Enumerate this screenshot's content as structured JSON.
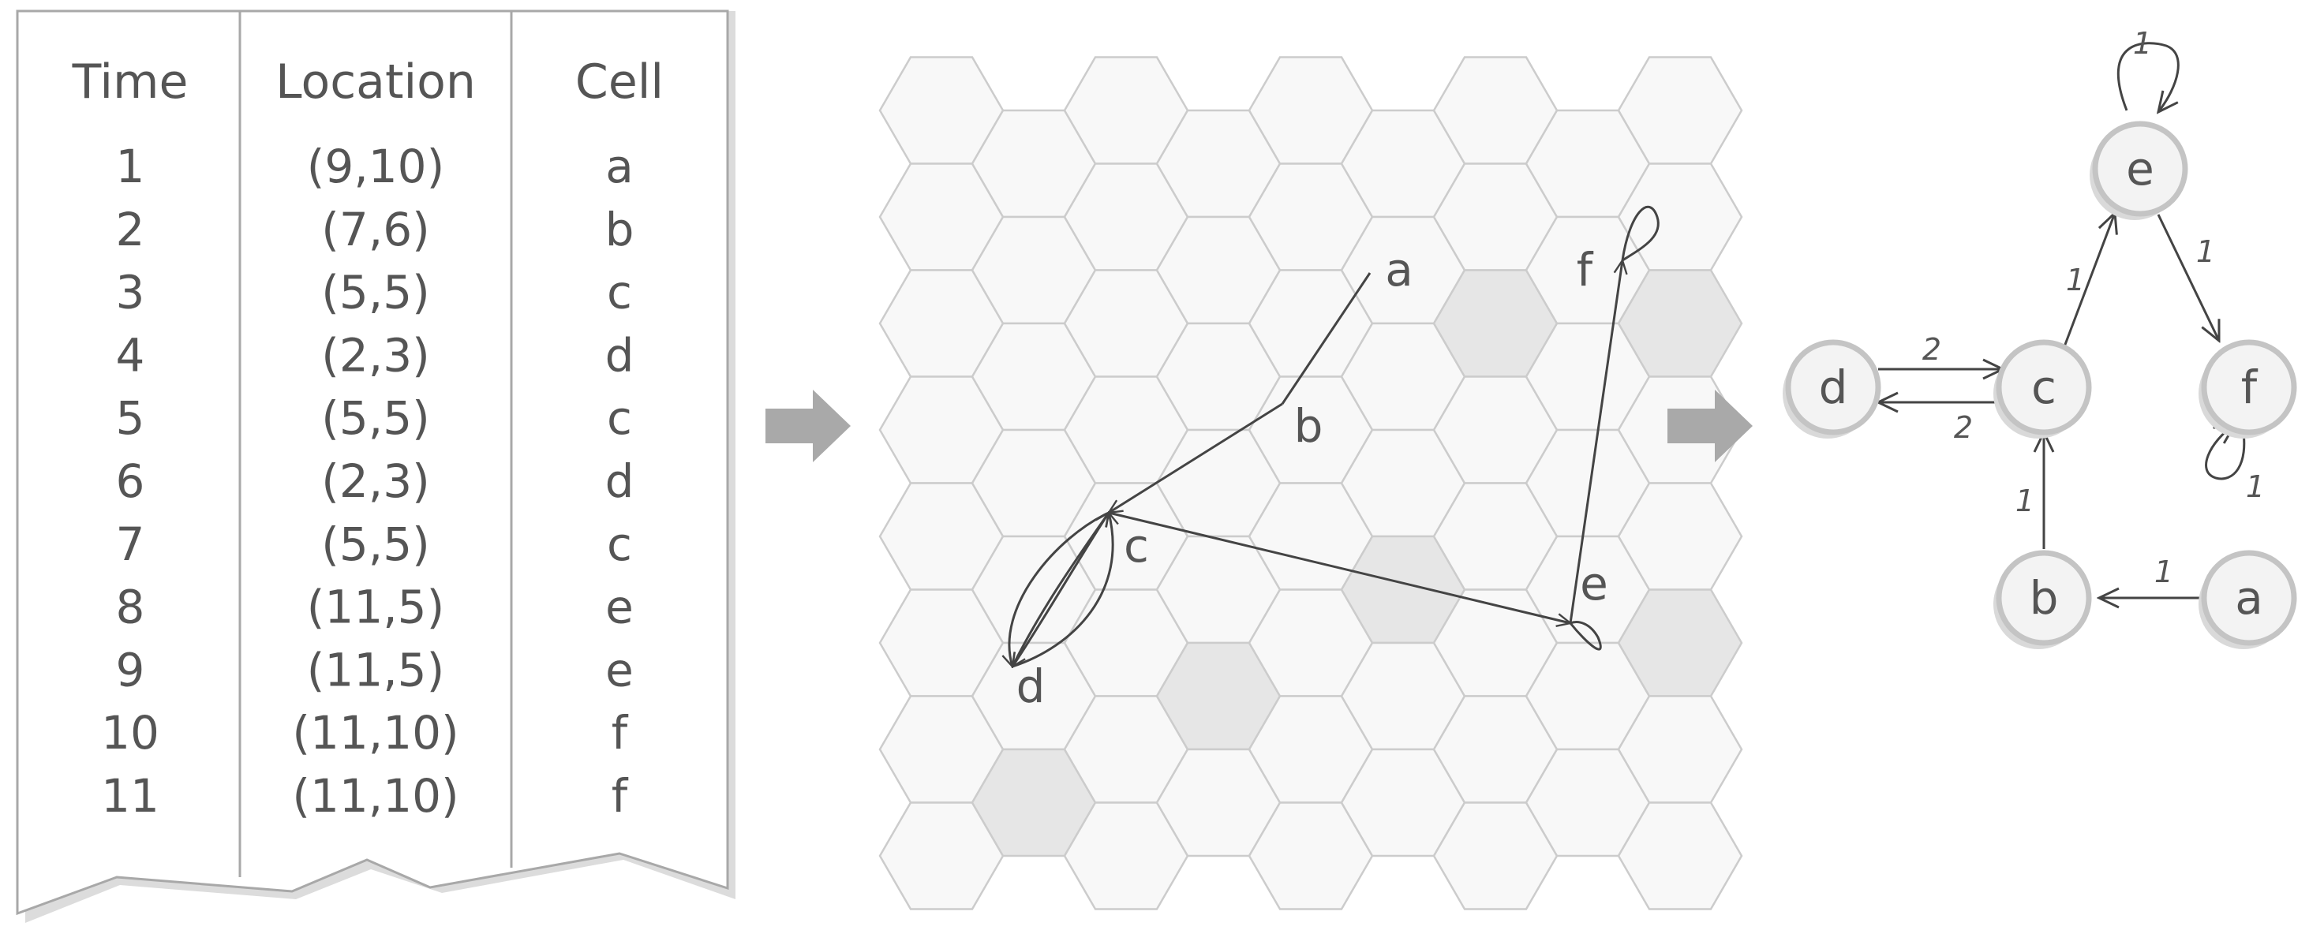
{
  "table": {
    "headers": [
      "Time",
      "Location",
      "Cell"
    ],
    "rows": [
      [
        "1",
        "(9,10)",
        "a"
      ],
      [
        "2",
        "(7,6)",
        "b"
      ],
      [
        "3",
        "(5,5)",
        "c"
      ],
      [
        "4",
        "(2,3)",
        "d"
      ],
      [
        "5",
        "(5,5)",
        "c"
      ],
      [
        "6",
        "(2,3)",
        "d"
      ],
      [
        "7",
        "(5,5)",
        "c"
      ],
      [
        "8",
        "(11,5)",
        "e"
      ],
      [
        "9",
        "(11,5)",
        "e"
      ],
      [
        "10",
        "(11,10)",
        "f"
      ],
      [
        "11",
        "(11,10)",
        "f"
      ]
    ]
  },
  "hex_map": {
    "cell_labels": {
      "a": "a",
      "b": "b",
      "c": "c",
      "d": "d",
      "e": "e",
      "f": "f"
    }
  },
  "graph": {
    "nodes": {
      "a": "a",
      "b": "b",
      "c": "c",
      "d": "d",
      "e": "e",
      "f": "f"
    },
    "edge_weights": {
      "a_b": "1",
      "b_c": "1",
      "c_e": "1",
      "e_f": "1",
      "d_c": "2",
      "c_d": "2",
      "e_e": "1",
      "f_f": "1"
    }
  },
  "colors": {
    "line": "#444444",
    "text": "#555555",
    "hex_fill": "#f8f8f8",
    "hex_highlight": "#e6e6e6",
    "hex_stroke": "#cccccc",
    "arrow": "#a9a9a9",
    "node_fill": "#f3f3f3",
    "node_stroke": "#c4c4c4"
  }
}
